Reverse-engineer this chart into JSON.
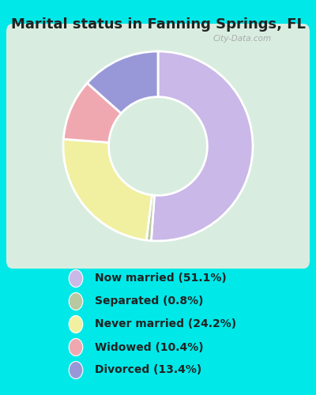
{
  "title": "Marital status in Fanning Springs, FL",
  "categories": [
    "Now married",
    "Separated",
    "Never married",
    "Widowed",
    "Divorced"
  ],
  "values": [
    51.1,
    0.8,
    24.2,
    10.4,
    13.4
  ],
  "colors": [
    "#c9b8e8",
    "#b8c8a0",
    "#f0f0a0",
    "#f0a8b0",
    "#9898d8"
  ],
  "legend_labels": [
    "Now married (51.1%)",
    "Separated (0.8%)",
    "Never married (24.2%)",
    "Widowed (10.4%)",
    "Divorced (13.4%)"
  ],
  "bg_color": "#00e8e8",
  "chart_bg": "#d8ede0",
  "watermark": "City-Data.com",
  "title_fontsize": 13,
  "legend_fontsize": 10,
  "title_color": "#222222"
}
